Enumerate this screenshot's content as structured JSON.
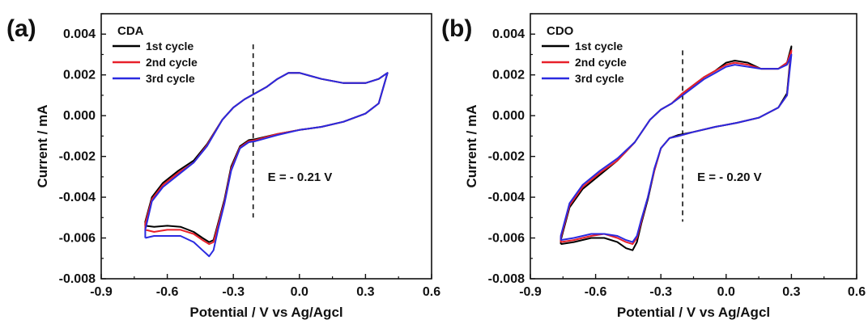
{
  "chart_data": [
    {
      "type": "line",
      "panel_label": "(a)",
      "sample": "CDA",
      "xlabel": "Potential / V vs Ag/Agcl",
      "ylabel": "Current / mA",
      "xlim": [
        -0.9,
        0.6
      ],
      "ylim": [
        -0.008,
        0.005
      ],
      "xticks": [
        "-0.9",
        "-0.6",
        "-0.3",
        "0.0",
        "0.3",
        "0.6"
      ],
      "yticks": [
        "-0.008",
        "-0.006",
        "-0.004",
        "-0.002",
        "0.000",
        "0.002",
        "0.004"
      ],
      "legend_position": "top-left",
      "annotation": {
        "text": "E = - 0.21 V",
        "x": -0.21,
        "y_range": [
          -0.005,
          0.0035
        ]
      },
      "series": [
        {
          "name": "1st cycle",
          "color": "#000000",
          "x": [
            -0.7,
            -0.66,
            -0.6,
            -0.54,
            -0.48,
            -0.44,
            -0.41,
            -0.39,
            -0.37,
            -0.34,
            -0.31,
            -0.27,
            -0.23,
            -0.2,
            -0.1,
            0.0,
            0.1,
            0.2,
            0.3,
            0.36,
            0.4,
            0.4,
            0.36,
            0.3,
            0.2,
            0.1,
            0.0,
            -0.05,
            -0.1,
            -0.15,
            -0.2,
            -0.25,
            -0.3,
            -0.35,
            -0.42,
            -0.48,
            -0.55,
            -0.62,
            -0.67,
            -0.7
          ],
          "y": [
            -0.0054,
            -0.00545,
            -0.0054,
            -0.00545,
            -0.0057,
            -0.006,
            -0.0062,
            -0.0061,
            -0.0053,
            -0.0041,
            -0.0025,
            -0.0015,
            -0.0012,
            -0.00115,
            -0.0009,
            -0.0007,
            -0.00055,
            -0.0003,
            0.0001,
            0.0006,
            0.0021,
            0.0021,
            0.0018,
            0.0016,
            0.0016,
            0.0018,
            0.0021,
            0.0021,
            0.0018,
            0.0014,
            0.0011,
            0.0008,
            0.0004,
            -0.0002,
            -0.0014,
            -0.0022,
            -0.0027,
            -0.0033,
            -0.004,
            -0.0052
          ]
        },
        {
          "name": "2nd cycle",
          "color": "#e8202a",
          "x": [
            -0.7,
            -0.66,
            -0.6,
            -0.54,
            -0.48,
            -0.44,
            -0.41,
            -0.39,
            -0.37,
            -0.34,
            -0.31,
            -0.27,
            -0.23,
            -0.2,
            -0.1,
            0.0,
            0.1,
            0.2,
            0.3,
            0.36,
            0.4,
            0.4,
            0.36,
            0.3,
            0.2,
            0.1,
            0.0,
            -0.05,
            -0.1,
            -0.15,
            -0.2,
            -0.25,
            -0.3,
            -0.35,
            -0.42,
            -0.48,
            -0.55,
            -0.62,
            -0.67,
            -0.7
          ],
          "y": [
            -0.0056,
            -0.0057,
            -0.0056,
            -0.0056,
            -0.0058,
            -0.0061,
            -0.0063,
            -0.0062,
            -0.0054,
            -0.0042,
            -0.0026,
            -0.00155,
            -0.00125,
            -0.0012,
            -0.0009,
            -0.0007,
            -0.00055,
            -0.0003,
            0.0001,
            0.0006,
            0.0021,
            0.0021,
            0.0018,
            0.0016,
            0.0016,
            0.0018,
            0.0021,
            0.0021,
            0.0018,
            0.0014,
            0.0011,
            0.0008,
            0.0004,
            -0.0002,
            -0.00145,
            -0.0023,
            -0.0028,
            -0.0034,
            -0.0041,
            -0.0053
          ]
        },
        {
          "name": "3rd cycle",
          "color": "#2a2ae0",
          "x": [
            -0.7,
            -0.66,
            -0.6,
            -0.54,
            -0.48,
            -0.44,
            -0.41,
            -0.39,
            -0.37,
            -0.34,
            -0.31,
            -0.27,
            -0.23,
            -0.2,
            -0.1,
            0.0,
            0.1,
            0.2,
            0.3,
            0.36,
            0.4,
            0.4,
            0.36,
            0.3,
            0.2,
            0.1,
            0.0,
            -0.05,
            -0.1,
            -0.15,
            -0.2,
            -0.25,
            -0.3,
            -0.35,
            -0.42,
            -0.48,
            -0.55,
            -0.62,
            -0.67,
            -0.7
          ],
          "y": [
            -0.006,
            -0.0059,
            -0.0059,
            -0.0059,
            -0.0062,
            -0.0066,
            -0.0069,
            -0.0066,
            -0.0056,
            -0.0043,
            -0.0027,
            -0.0016,
            -0.0013,
            -0.00125,
            -0.00095,
            -0.0007,
            -0.00055,
            -0.0003,
            0.0001,
            0.0006,
            0.0021,
            0.0021,
            0.0018,
            0.0016,
            0.0016,
            0.0018,
            0.0021,
            0.0021,
            0.0018,
            0.0014,
            0.0011,
            0.0008,
            0.0004,
            -0.0002,
            -0.0015,
            -0.0023,
            -0.0029,
            -0.0035,
            -0.0042,
            -0.0056
          ]
        }
      ]
    },
    {
      "type": "line",
      "panel_label": "(b)",
      "sample": "CDO",
      "xlabel": "Potential / V vs Ag/Agcl",
      "ylabel": "Current / mA",
      "xlim": [
        -0.9,
        0.6
      ],
      "ylim": [
        -0.008,
        0.005
      ],
      "xticks": [
        "-0.9",
        "-0.6",
        "-0.3",
        "0.0",
        "0.3",
        "0.6"
      ],
      "yticks": [
        "-0.008",
        "-0.006",
        "-0.004",
        "-0.002",
        "0.000",
        "0.002",
        "0.004"
      ],
      "legend_position": "top-left",
      "annotation": {
        "text": "E = - 0.20 V",
        "x": -0.2,
        "y_range": [
          -0.0052,
          0.0032
        ]
      },
      "series": [
        {
          "name": "1st cycle",
          "color": "#000000",
          "x": [
            -0.76,
            -0.7,
            -0.62,
            -0.56,
            -0.5,
            -0.46,
            -0.43,
            -0.41,
            -0.39,
            -0.36,
            -0.33,
            -0.3,
            -0.26,
            -0.22,
            -0.15,
            -0.05,
            0.05,
            0.15,
            0.24,
            0.28,
            0.3,
            0.3,
            0.28,
            0.24,
            0.16,
            0.1,
            0.04,
            0.0,
            -0.05,
            -0.1,
            -0.15,
            -0.2,
            -0.25,
            -0.3,
            -0.35,
            -0.42,
            -0.5,
            -0.58,
            -0.66,
            -0.72,
            -0.76
          ],
          "y": [
            -0.0063,
            -0.0062,
            -0.006,
            -0.006,
            -0.0062,
            -0.0065,
            -0.0066,
            -0.0062,
            -0.0053,
            -0.0041,
            -0.0027,
            -0.0016,
            -0.0011,
            -0.00095,
            -0.0008,
            -0.00055,
            -0.00035,
            -0.0001,
            0.0004,
            0.0011,
            0.0034,
            0.0034,
            0.0026,
            0.0023,
            0.0023,
            0.0026,
            0.0027,
            0.0026,
            0.0022,
            0.0019,
            0.0015,
            0.0011,
            0.0006,
            0.0003,
            -0.0002,
            -0.0013,
            -0.0022,
            -0.0029,
            -0.0036,
            -0.0045,
            -0.0061
          ]
        },
        {
          "name": "2nd cycle",
          "color": "#e8202a",
          "x": [
            -0.76,
            -0.7,
            -0.62,
            -0.56,
            -0.5,
            -0.46,
            -0.43,
            -0.41,
            -0.39,
            -0.36,
            -0.33,
            -0.3,
            -0.26,
            -0.22,
            -0.15,
            -0.05,
            0.05,
            0.15,
            0.24,
            0.28,
            0.3,
            0.3,
            0.28,
            0.24,
            0.16,
            0.1,
            0.04,
            0.0,
            -0.05,
            -0.1,
            -0.15,
            -0.2,
            -0.25,
            -0.3,
            -0.35,
            -0.42,
            -0.5,
            -0.58,
            -0.66,
            -0.72,
            -0.76
          ],
          "y": [
            -0.0062,
            -0.0061,
            -0.0059,
            -0.0058,
            -0.006,
            -0.0062,
            -0.0063,
            -0.006,
            -0.0052,
            -0.004,
            -0.0027,
            -0.0016,
            -0.0011,
            -0.001,
            -0.0008,
            -0.00055,
            -0.00035,
            -0.0001,
            0.0004,
            0.001,
            0.0032,
            0.0032,
            0.0026,
            0.0023,
            0.0023,
            0.0025,
            0.0026,
            0.0025,
            0.0022,
            0.0019,
            0.0015,
            0.0011,
            0.0006,
            0.0003,
            -0.0002,
            -0.0013,
            -0.0022,
            -0.0028,
            -0.0035,
            -0.0044,
            -0.006
          ]
        },
        {
          "name": "3rd cycle",
          "color": "#2a2ae0",
          "x": [
            -0.76,
            -0.7,
            -0.62,
            -0.56,
            -0.5,
            -0.46,
            -0.43,
            -0.41,
            -0.39,
            -0.36,
            -0.33,
            -0.3,
            -0.26,
            -0.22,
            -0.15,
            -0.05,
            0.05,
            0.15,
            0.24,
            0.28,
            0.3,
            0.3,
            0.28,
            0.24,
            0.16,
            0.1,
            0.04,
            0.0,
            -0.05,
            -0.1,
            -0.15,
            -0.2,
            -0.25,
            -0.3,
            -0.35,
            -0.42,
            -0.5,
            -0.58,
            -0.66,
            -0.72,
            -0.76
          ],
          "y": [
            -0.0061,
            -0.006,
            -0.0058,
            -0.0058,
            -0.0059,
            -0.0061,
            -0.0062,
            -0.0059,
            -0.0051,
            -0.004,
            -0.0026,
            -0.0016,
            -0.0011,
            -0.001,
            -0.0008,
            -0.00055,
            -0.00035,
            -0.0001,
            0.0004,
            0.001,
            0.003,
            0.003,
            0.0025,
            0.0023,
            0.0023,
            0.0024,
            0.0025,
            0.0024,
            0.0021,
            0.0018,
            0.0014,
            0.001,
            0.0006,
            0.0003,
            -0.0002,
            -0.0013,
            -0.0021,
            -0.0027,
            -0.0034,
            -0.0043,
            -0.0059
          ]
        }
      ]
    }
  ]
}
